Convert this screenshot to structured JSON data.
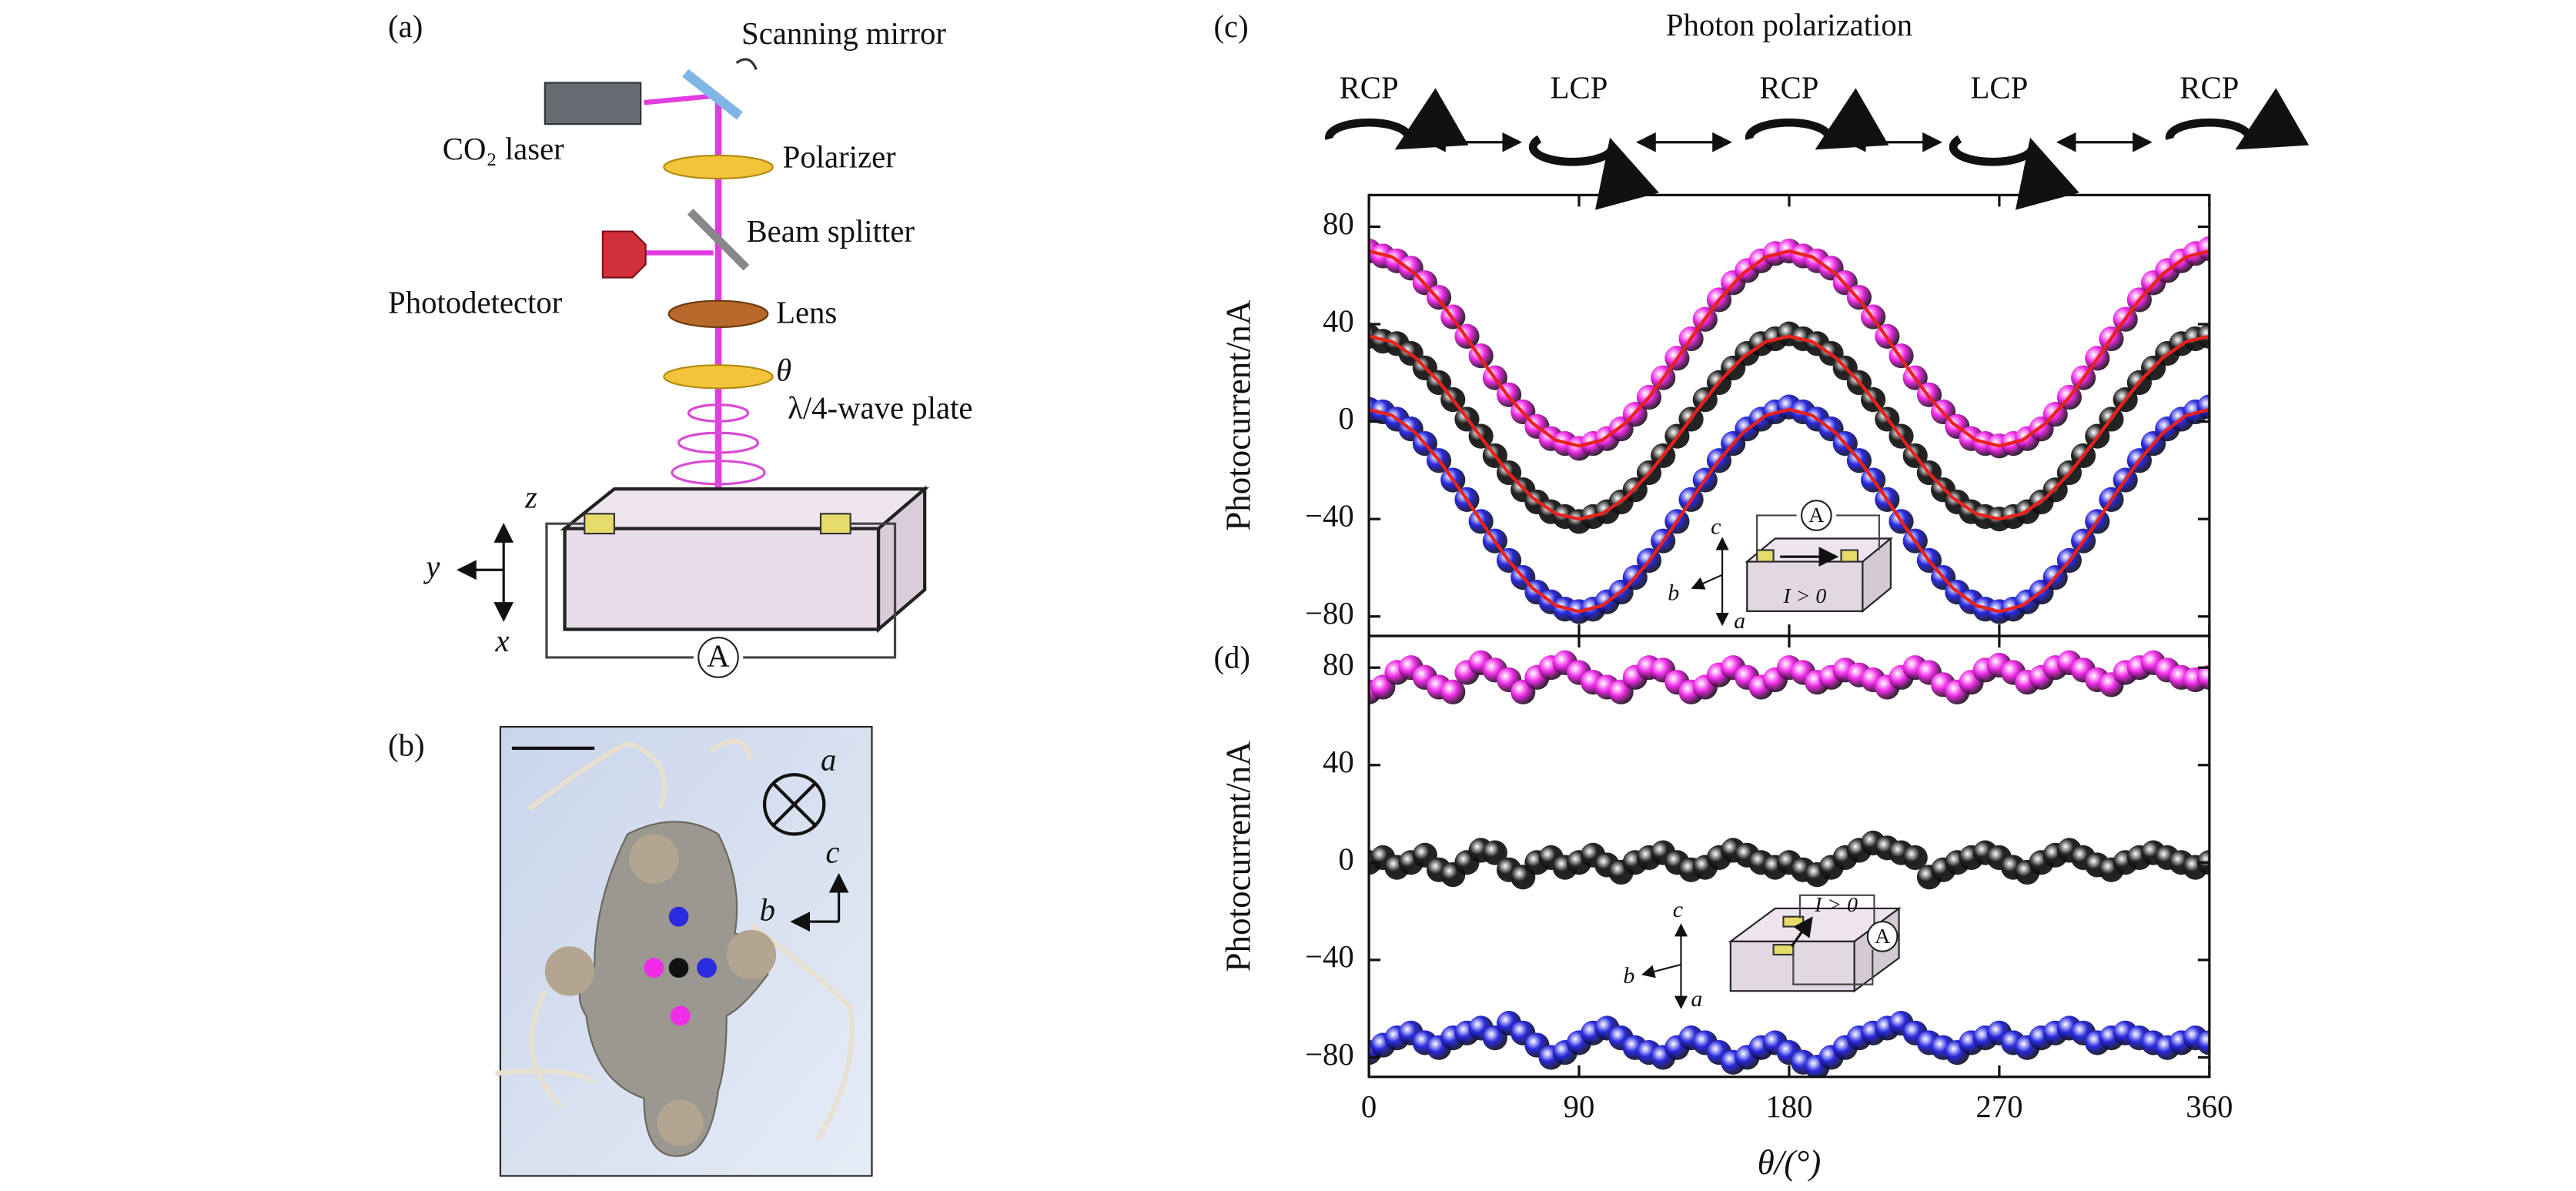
{
  "figure": {
    "panel_a": {
      "label": "(a)",
      "scanning_mirror": "Scanning mirror",
      "laser": "CO₂ laser",
      "polarizer": "Polarizer",
      "beam_splitter": "Beam splitter",
      "photodetector": "Photodetector",
      "lens": "Lens",
      "theta": "θ",
      "wave_plate": "λ/4-wave plate",
      "axis_z": "z",
      "axis_y": "y",
      "axis_x": "x",
      "ammeter": "A"
    },
    "panel_b": {
      "label": "(b)",
      "axis_a": "a",
      "axis_b": "b",
      "axis_c": "c"
    }
  },
  "chart_data": [
    {
      "type": "scatter",
      "panel_label": "(c)",
      "title": "Photon polarization",
      "polarization_labels": [
        "RCP",
        "LCP",
        "RCP",
        "LCP",
        "RCP"
      ],
      "ylabel": "Photocurrent/nA",
      "show_xtick_labels": false,
      "xlim": [
        0,
        360
      ],
      "xticks": [
        0,
        90,
        180,
        270,
        360
      ],
      "ylim": [
        -88,
        93
      ],
      "yticks": [
        {
          "value": -80,
          "label": "−80"
        },
        {
          "value": -40,
          "label": "−40"
        },
        0,
        40,
        80
      ],
      "inset_labels": [
        "A",
        "c",
        "b",
        "a",
        "I > 0"
      ],
      "x": [
        0,
        6,
        12,
        18,
        24,
        30,
        36,
        42,
        48,
        54,
        60,
        66,
        72,
        78,
        84,
        90,
        96,
        102,
        108,
        114,
        120,
        126,
        132,
        138,
        144,
        150,
        156,
        162,
        168,
        174,
        180,
        186,
        192,
        198,
        204,
        210,
        216,
        222,
        228,
        234,
        240,
        246,
        252,
        258,
        264,
        270,
        276,
        282,
        288,
        294,
        300,
        306,
        312,
        318,
        324,
        330,
        336,
        342,
        348,
        354,
        360
      ],
      "series": [
        {
          "color": "#f02ce8",
          "values": [
            70,
            68,
            66,
            63,
            57,
            51,
            43,
            35,
            27,
            18,
            11,
            4,
            -2,
            -7,
            -9,
            -11,
            -9,
            -7,
            -3,
            3,
            10,
            18,
            26,
            34,
            42,
            50,
            57,
            62,
            66,
            69,
            70,
            68,
            66,
            63,
            57,
            51,
            43,
            35,
            27,
            18,
            11,
            4,
            -2,
            -7,
            -9,
            -10,
            -9,
            -7,
            -3,
            3,
            10,
            18,
            26,
            34,
            42,
            50,
            57,
            62,
            66,
            69,
            71
          ]
        },
        {
          "color": "#222222",
          "values": [
            35,
            33,
            32,
            28,
            22,
            16,
            9,
            1,
            -6,
            -14,
            -21,
            -28,
            -33,
            -37,
            -39,
            -41,
            -39,
            -37,
            -33,
            -28,
            -21,
            -14,
            -6,
            1,
            9,
            16,
            22,
            28,
            32,
            34,
            36,
            34,
            32,
            28,
            22,
            16,
            9,
            1,
            -6,
            -14,
            -21,
            -28,
            -33,
            -37,
            -39,
            -40,
            -39,
            -37,
            -33,
            -28,
            -21,
            -14,
            -6,
            1,
            9,
            16,
            22,
            28,
            32,
            34,
            35
          ]
        },
        {
          "color": "#2a2ae0",
          "values": [
            5,
            4,
            1,
            -3,
            -9,
            -16,
            -24,
            -32,
            -41,
            -49,
            -57,
            -64,
            -70,
            -74,
            -77,
            -78,
            -77,
            -74,
            -70,
            -64,
            -57,
            -49,
            -41,
            -32,
            -24,
            -16,
            -9,
            -3,
            1,
            4,
            6,
            4,
            1,
            -3,
            -9,
            -16,
            -24,
            -32,
            -41,
            -49,
            -57,
            -64,
            -70,
            -74,
            -77,
            -78,
            -77,
            -74,
            -70,
            -64,
            -57,
            -49,
            -41,
            -32,
            -24,
            -16,
            -9,
            -3,
            1,
            4,
            6
          ]
        },
        {
          "color": "#e8211c",
          "style": "line",
          "x": [
            0,
            10,
            20,
            30,
            40,
            50,
            60,
            70,
            80,
            90,
            100,
            110,
            120,
            130,
            140,
            150,
            160,
            170,
            180,
            190,
            200,
            210,
            220,
            230,
            240,
            250,
            260,
            270,
            280,
            290,
            300,
            310,
            320,
            330,
            340,
            350,
            360
          ],
          "values": [
            70,
            67.6,
            60.6,
            50,
            37,
            23,
            10,
            -0.6,
            -7.6,
            -10,
            -7.6,
            -0.6,
            10,
            23,
            37,
            50,
            60.6,
            67.6,
            70,
            67.6,
            60.6,
            50,
            37,
            23,
            10,
            -0.6,
            -7.6,
            -10,
            -7.6,
            -0.6,
            10,
            23,
            37,
            50,
            60.6,
            67.6,
            70
          ]
        },
        {
          "color": "#e8211c",
          "style": "line",
          "x": [
            0,
            10,
            20,
            30,
            40,
            50,
            60,
            70,
            80,
            90,
            100,
            110,
            120,
            130,
            140,
            150,
            160,
            170,
            180,
            190,
            200,
            210,
            220,
            230,
            240,
            250,
            260,
            270,
            280,
            290,
            300,
            310,
            320,
            330,
            340,
            350,
            360
          ],
          "values": [
            35,
            32.8,
            26.2,
            16.3,
            4,
            -9,
            -21.3,
            -31.2,
            -37.8,
            -40,
            -37.8,
            -31.2,
            -21.3,
            -9,
            4,
            16.3,
            26.2,
            32.8,
            35,
            32.8,
            26.2,
            16.3,
            4,
            -9,
            -21.3,
            -31.2,
            -37.8,
            -40,
            -37.8,
            -31.2,
            -21.3,
            -9,
            4,
            16.3,
            26.2,
            32.8,
            35
          ]
        },
        {
          "color": "#e8211c",
          "style": "line",
          "x": [
            0,
            10,
            20,
            30,
            40,
            50,
            60,
            70,
            80,
            90,
            100,
            110,
            120,
            130,
            140,
            150,
            160,
            170,
            180,
            190,
            200,
            210,
            220,
            230,
            240,
            250,
            260,
            270,
            280,
            290,
            300,
            310,
            320,
            330,
            340,
            350,
            360
          ],
          "values": [
            5,
            2.5,
            -4.7,
            -15.8,
            -29.3,
            -43.7,
            -57.3,
            -68.3,
            -75.5,
            -78,
            -75.5,
            -68.3,
            -57.3,
            -43.7,
            -29.3,
            -15.8,
            -4.7,
            2.5,
            5,
            2.5,
            -4.7,
            -15.8,
            -29.3,
            -43.7,
            -57.3,
            -68.3,
            -75.5,
            -78,
            -75.5,
            -68.3,
            -57.3,
            -43.7,
            -29.3,
            -15.8,
            -4.7,
            2.5,
            5
          ]
        }
      ]
    },
    {
      "type": "scatter",
      "panel_label": "(d)",
      "ylabel": "Photocurrent/nA",
      "xlabel": "θ/(°)",
      "show_xtick_labels": true,
      "xlim": [
        0,
        360
      ],
      "xticks": [
        0,
        90,
        180,
        270,
        360
      ],
      "ylim": [
        -88,
        93
      ],
      "yticks": [
        {
          "value": -80,
          "label": "−80"
        },
        {
          "value": -40,
          "label": "−40"
        },
        0,
        40,
        80
      ],
      "inset_labels": [
        "A",
        "c",
        "b",
        "a",
        "I > 0"
      ],
      "x": [
        0,
        6,
        12,
        18,
        24,
        30,
        36,
        42,
        48,
        54,
        60,
        66,
        72,
        78,
        84,
        90,
        96,
        102,
        108,
        114,
        120,
        126,
        132,
        138,
        144,
        150,
        156,
        162,
        168,
        174,
        180,
        186,
        192,
        198,
        204,
        210,
        216,
        222,
        228,
        234,
        240,
        246,
        252,
        258,
        264,
        270,
        276,
        282,
        288,
        294,
        300,
        306,
        312,
        318,
        324,
        330,
        336,
        342,
        348,
        354,
        360
      ],
      "series": [
        {
          "color": "#f02ce8",
          "values": [
            70,
            72,
            78,
            80,
            76,
            72,
            70,
            78,
            82,
            79,
            75,
            70,
            76,
            80,
            82,
            78,
            74,
            72,
            70,
            76,
            80,
            79,
            74,
            70,
            72,
            77,
            80,
            76,
            72,
            75,
            80,
            78,
            74,
            76,
            79,
            77,
            75,
            72,
            76,
            80,
            78,
            73,
            70,
            74,
            79,
            81,
            78,
            74,
            76,
            80,
            82,
            79,
            75,
            73,
            78,
            80,
            82,
            79,
            76,
            75,
            76
          ]
        },
        {
          "color": "#222222",
          "values": [
            0,
            2,
            -2,
            0,
            3,
            -3,
            -5,
            0,
            5,
            4,
            -3,
            -6,
            0,
            2,
            -2,
            0,
            3,
            -1,
            -4,
            0,
            2,
            4,
            0,
            -3,
            -2,
            2,
            5,
            3,
            0,
            -2,
            0,
            -3,
            -5,
            -2,
            2,
            5,
            8,
            6,
            4,
            2,
            -6,
            -3,
            0,
            2,
            4,
            2,
            -2,
            -4,
            0,
            3,
            5,
            2,
            -1,
            -3,
            0,
            2,
            4,
            2,
            0,
            -2,
            0
          ]
        },
        {
          "color": "#2a2ae0",
          "values": [
            -78,
            -75,
            -72,
            -70,
            -74,
            -76,
            -72,
            -70,
            -68,
            -72,
            -66,
            -70,
            -75,
            -80,
            -78,
            -74,
            -70,
            -68,
            -72,
            -76,
            -78,
            -80,
            -76,
            -72,
            -74,
            -78,
            -82,
            -80,
            -76,
            -74,
            -78,
            -82,
            -84,
            -80,
            -76,
            -72,
            -70,
            -68,
            -66,
            -70,
            -74,
            -76,
            -78,
            -74,
            -72,
            -70,
            -74,
            -76,
            -72,
            -70,
            -68,
            -70,
            -74,
            -72,
            -70,
            -72,
            -74,
            -76,
            -74,
            -72,
            -74
          ]
        }
      ]
    }
  ]
}
